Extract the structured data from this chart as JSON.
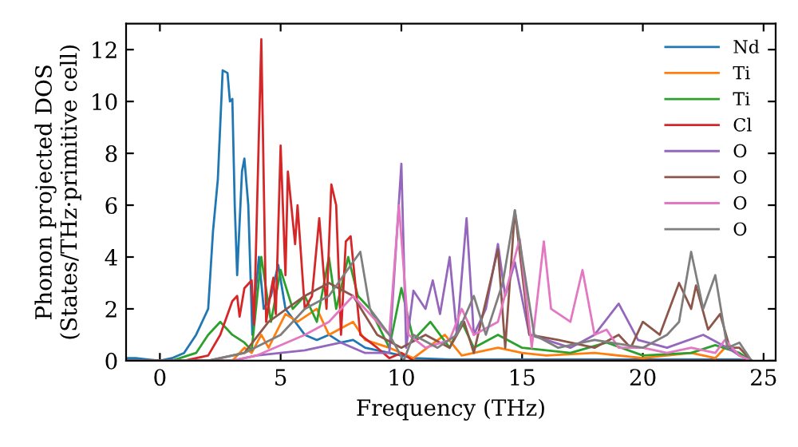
{
  "chart_data": {
    "type": "line",
    "xlabel": "Frequency (THz)",
    "ylabel": "Phonon projected DOS\n(States/THz·primitive cell)",
    "xlim": [
      -1.4,
      25.5
    ],
    "ylim": [
      0,
      13
    ],
    "xticks": [
      0,
      5,
      10,
      15,
      20,
      25
    ],
    "yticks": [
      0,
      2,
      4,
      6,
      8,
      10,
      12
    ],
    "grid": false,
    "legend": "top right",
    "marker": "none",
    "line_style": "solid",
    "series": [
      {
        "name": "Nd",
        "color": "#1f77b4",
        "x": [
          -1.4,
          -1,
          -0.5,
          0,
          0.5,
          1,
          1.5,
          2,
          2.2,
          2.4,
          2.6,
          2.8,
          2.9,
          3.0,
          3.1,
          3.2,
          3.4,
          3.5,
          3.66,
          3.83,
          3.9,
          4.1,
          4.3,
          4.6,
          4.9,
          5.2,
          5.6,
          6,
          6.5,
          7,
          7.5,
          8,
          8.5,
          9,
          9.5,
          10,
          10.5,
          12,
          14,
          16,
          18,
          20,
          22,
          24,
          24.5
        ],
        "values": [
          0.1,
          0.1,
          0.05,
          0,
          0.1,
          0.3,
          1,
          2,
          5,
          7,
          11.2,
          11.1,
          10,
          10.1,
          6,
          3.3,
          7.3,
          7.8,
          6,
          1,
          2,
          4,
          2,
          2.5,
          3.7,
          2,
          1.5,
          1,
          0.8,
          1,
          0.7,
          0.8,
          0.5,
          0.4,
          0.3,
          0.2,
          0.1,
          0.05,
          0.05,
          0.05,
          0.05,
          0.05,
          0.05,
          0.05,
          0
        ]
      },
      {
        "name": "Ti",
        "color": "#ff7f0e",
        "x": [
          -1.4,
          3,
          3.5,
          3.8,
          4.2,
          4.5,
          5.2,
          5.7,
          6.5,
          7,
          8,
          8.5,
          9.5,
          10,
          10.5,
          11.8,
          12.5,
          14,
          15,
          16,
          18,
          20,
          22,
          23,
          23.5,
          24,
          24.5
        ],
        "values": [
          0,
          0,
          0.5,
          0.3,
          1,
          0.5,
          1.8,
          1.5,
          2,
          1,
          1.5,
          0.8,
          0.5,
          0.3,
          0.1,
          1,
          0.2,
          0.5,
          0.3,
          0.2,
          0.3,
          0.1,
          0.3,
          0.1,
          0.6,
          0.2,
          0
        ]
      },
      {
        "name": "Ti",
        "color": "#2ca02c",
        "x": [
          -1.4,
          0.5,
          1.5,
          2,
          2.5,
          3,
          3.5,
          3.8,
          4.2,
          4.6,
          5,
          5.5,
          6,
          6.5,
          7,
          7.3,
          7.8,
          8.2,
          8.7,
          9.5,
          10,
          10.5,
          11.2,
          12,
          12.5,
          13,
          14,
          15,
          17,
          18.5,
          20,
          22,
          23,
          24,
          24.5
        ],
        "values": [
          0,
          0,
          0.3,
          1,
          1.5,
          1,
          0.7,
          0.4,
          4,
          1.5,
          3.5,
          2,
          2.5,
          1.5,
          4,
          2,
          4,
          2.5,
          2,
          0.5,
          2.8,
          0.8,
          1.5,
          0.5,
          1.5,
          0.5,
          1,
          0.5,
          0.3,
          0.7,
          0.2,
          0.3,
          0.6,
          0.3,
          0
        ]
      },
      {
        "name": "Cl",
        "color": "#d62728",
        "x": [
          -1.4,
          1,
          2,
          2.5,
          3,
          3.2,
          3.3,
          3.5,
          3.8,
          3.9,
          4.2,
          4.4,
          4.6,
          4.7,
          4.8,
          5,
          5.2,
          5.3,
          5.6,
          5.7,
          6,
          6.3,
          6.6,
          6.9,
          7.1,
          7.3,
          7.5,
          7.7,
          7.9,
          8.3,
          9,
          9.5,
          10,
          10.5,
          24.5
        ],
        "values": [
          0,
          0,
          0.2,
          1,
          2.3,
          2.5,
          1.7,
          2.8,
          3.1,
          1.4,
          12.4,
          1.5,
          2.7,
          3.2,
          1.8,
          8.3,
          3.3,
          7.3,
          4.5,
          6,
          2,
          2.5,
          5.5,
          2,
          6.8,
          6,
          1,
          4.6,
          4.8,
          1,
          0.5,
          0.1,
          0.3,
          0,
          0
        ]
      },
      {
        "name": "O",
        "color": "#9467bd",
        "x": [
          -1.4,
          3,
          4,
          6,
          7.5,
          8.5,
          9.5,
          10,
          10.2,
          10.5,
          11,
          11.3,
          11.6,
          12,
          12.3,
          12.7,
          13,
          13.5,
          14,
          14.3,
          14.7,
          15.3,
          16,
          17,
          18,
          19,
          19.8,
          21,
          22.5,
          23.5,
          24,
          24.5
        ],
        "values": [
          0,
          0,
          0.2,
          0.4,
          0.7,
          0.3,
          0.3,
          7.6,
          0.5,
          2.7,
          2,
          3.1,
          1.8,
          4,
          1,
          5.5,
          1,
          2,
          4.5,
          2.5,
          3.8,
          1,
          0.8,
          0.5,
          1,
          2.2,
          0.8,
          0.5,
          1,
          0.5,
          0.2,
          0
        ]
      },
      {
        "name": "O",
        "color": "#8c564b",
        "x": [
          -1.4,
          2,
          3.5,
          4.5,
          6,
          7,
          8,
          9,
          10,
          11,
          12,
          12.6,
          13,
          14,
          14.3,
          14.7,
          15.3,
          16.5,
          18,
          19,
          19.5,
          20,
          20.7,
          21.5,
          22,
          22.2,
          22.7,
          23.2,
          23.6,
          24,
          24.5
        ],
        "values": [
          0,
          0,
          0.3,
          1.5,
          2.5,
          3,
          2.5,
          1,
          0.5,
          1,
          0.5,
          1.5,
          0.3,
          4.3,
          0.5,
          5.8,
          1,
          0.8,
          0.5,
          1,
          0.5,
          1.5,
          1,
          3,
          2,
          2.9,
          1.2,
          1.8,
          0.5,
          0.5,
          0
        ]
      },
      {
        "name": "O",
        "color": "#e377c2",
        "x": [
          -1.4,
          3,
          4,
          6,
          7,
          8,
          9,
          9.5,
          9.9,
          10.3,
          11,
          12,
          12.5,
          13,
          14,
          14.9,
          15.4,
          15.9,
          16.2,
          17,
          17.5,
          18,
          18.5,
          19,
          20,
          21,
          22,
          23,
          23.4,
          24,
          24.5
        ],
        "values": [
          0,
          0,
          0.2,
          1,
          1.5,
          2.5,
          1.5,
          1,
          6,
          1,
          0.5,
          0.8,
          2,
          1,
          1.5,
          4.7,
          0.5,
          4.6,
          2,
          1.5,
          3.5,
          1,
          1.2,
          0.5,
          0.5,
          0.3,
          0.5,
          0.3,
          0.8,
          0.2,
          0
        ]
      },
      {
        "name": "O",
        "color": "#7f7f7f",
        "x": [
          -1.4,
          2,
          3.5,
          5,
          6,
          7,
          8.3,
          8.7,
          9.5,
          10.1,
          10.5,
          11.5,
          12.3,
          13,
          13.5,
          14.2,
          14.7,
          15.5,
          16.5,
          18,
          20,
          21,
          21.5,
          22,
          22.5,
          23,
          23.5,
          24,
          24.5
        ],
        "values": [
          0,
          0,
          0.3,
          1,
          2,
          2.5,
          4.2,
          2,
          1,
          0,
          1,
          0.5,
          1,
          2.5,
          1,
          3,
          5.8,
          1,
          0.5,
          0.8,
          0.5,
          1,
          1.5,
          4.2,
          2,
          3.3,
          0.5,
          0.7,
          0
        ]
      }
    ]
  }
}
